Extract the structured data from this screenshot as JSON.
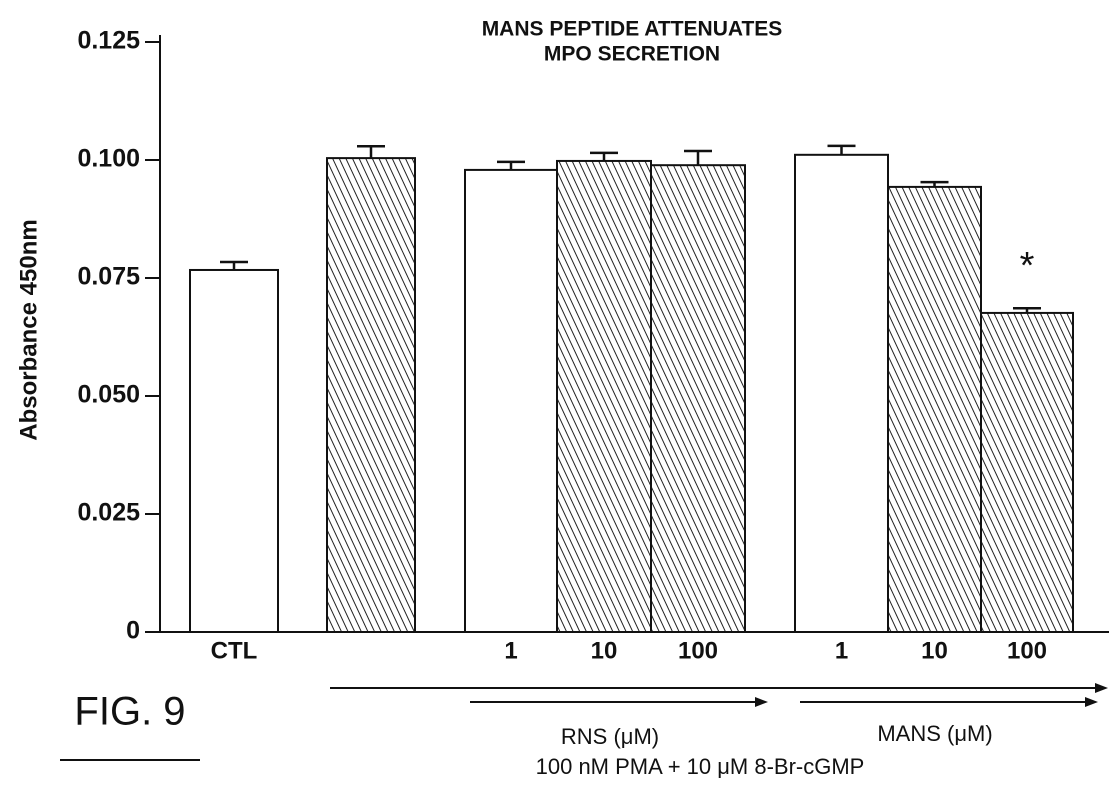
{
  "chart_data": {
    "type": "bar",
    "title": [
      "MANS PEPTIDE ATTENUATES",
      "MPO SECRETION"
    ],
    "y_label": "Absorbance 450nm",
    "categories": [
      "CTL",
      null,
      "1",
      "10",
      "100",
      "1",
      "10",
      "100"
    ],
    "values": [
      0.0767,
      0.1004,
      0.0979,
      0.0998,
      0.0989,
      0.1011,
      0.0943,
      0.0676
    ],
    "errors": [
      0.0017,
      0.0025,
      0.0017,
      0.0017,
      0.003,
      0.0019,
      0.001,
      0.001
    ],
    "hatched": [
      false,
      true,
      false,
      true,
      true,
      false,
      true,
      true
    ],
    "color": "#ffffff",
    "ylim": [
      0,
      0.125
    ],
    "yticks": [
      0,
      0.025,
      {
        "value": 0.05,
        "label": "0.050"
      },
      0.075,
      {
        "value": 0.1,
        "label": "0.100"
      },
      0.125
    ],
    "annotations": [
      "*"
    ],
    "group_labels": [
      "RNS (μM)",
      "MANS (μM)",
      "100 nM PMA + 10 μM 8-Br-cGMP"
    ],
    "figure_label": "FIG. 9"
  }
}
